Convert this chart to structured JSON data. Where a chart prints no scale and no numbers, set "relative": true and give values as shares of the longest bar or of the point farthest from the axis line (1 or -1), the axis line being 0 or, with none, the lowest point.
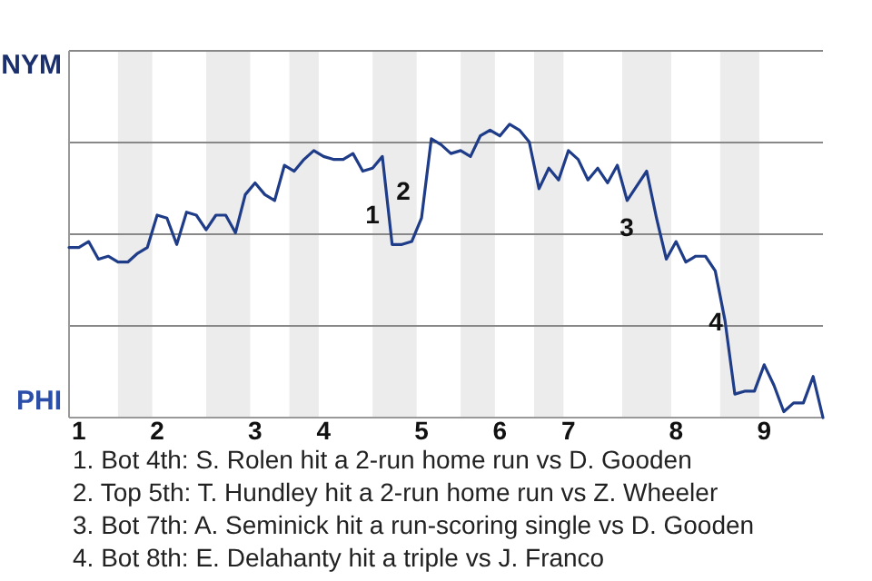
{
  "chart_data": {
    "type": "line",
    "relative": true,
    "categories": [
      null,
      "1",
      null,
      null,
      null,
      null,
      null,
      null,
      null,
      "2",
      null,
      null,
      null,
      null,
      null,
      null,
      null,
      null,
      null,
      "3",
      null,
      null,
      null,
      null,
      null,
      null,
      "4",
      null,
      null,
      null,
      null,
      null,
      null,
      null,
      null,
      null,
      "5",
      null,
      null,
      null,
      null,
      null,
      null,
      null,
      "6",
      null,
      null,
      null,
      null,
      null,
      null,
      "7",
      null,
      null,
      null,
      null,
      null,
      null,
      null,
      null,
      null,
      null,
      "8",
      null,
      null,
      null,
      null,
      null,
      null,
      null,
      null,
      "9",
      null,
      null,
      null,
      null,
      null,
      null
    ],
    "grid": "y",
    "marker": "none",
    "line_style": "solid",
    "series": [
      {
        "color": "#1f3c88",
        "values": [
          0.58,
          0.58,
          0.6,
          0.54,
          0.55,
          0.53,
          0.53,
          0.56,
          0.58,
          0.69,
          0.68,
          0.59,
          0.7,
          0.69,
          0.64,
          0.69,
          0.69,
          0.63,
          0.76,
          0.8,
          0.76,
          0.74,
          0.86,
          0.84,
          0.88,
          0.91,
          0.89,
          0.88,
          0.88,
          0.9,
          0.84,
          0.85,
          0.89,
          0.59,
          0.59,
          0.6,
          0.68,
          0.95,
          0.93,
          0.9,
          0.91,
          0.89,
          0.96,
          0.98,
          0.96,
          1,
          0.98,
          0.94,
          0.78,
          0.85,
          0.81,
          0.91,
          0.88,
          0.81,
          0.85,
          0.8,
          0.86,
          0.74,
          0.79,
          0.84,
          0.68,
          0.54,
          0.6,
          0.53,
          0.55,
          0.55,
          0.5,
          0.33,
          0.08,
          0.09,
          0.09,
          0.18,
          0.11,
          0.02,
          0.05,
          0.05,
          0.14,
          0
        ]
      }
    ],
    "annotations": [
      "NYM",
      "PHI",
      "1",
      "2",
      "3",
      "4",
      "1. Bot 4th: S. Rolen hit a 2-run home run vs D. Gooden",
      "2. Top 5th: T. Hundley hit a 2-run home run vs Z. Wheeler",
      "3. Bot 7th: A. Seminick hit a run-scoring single vs D. Gooden",
      "4. Bot 8th: E. Delahanty hit a triple vs J. Franco"
    ]
  }
}
